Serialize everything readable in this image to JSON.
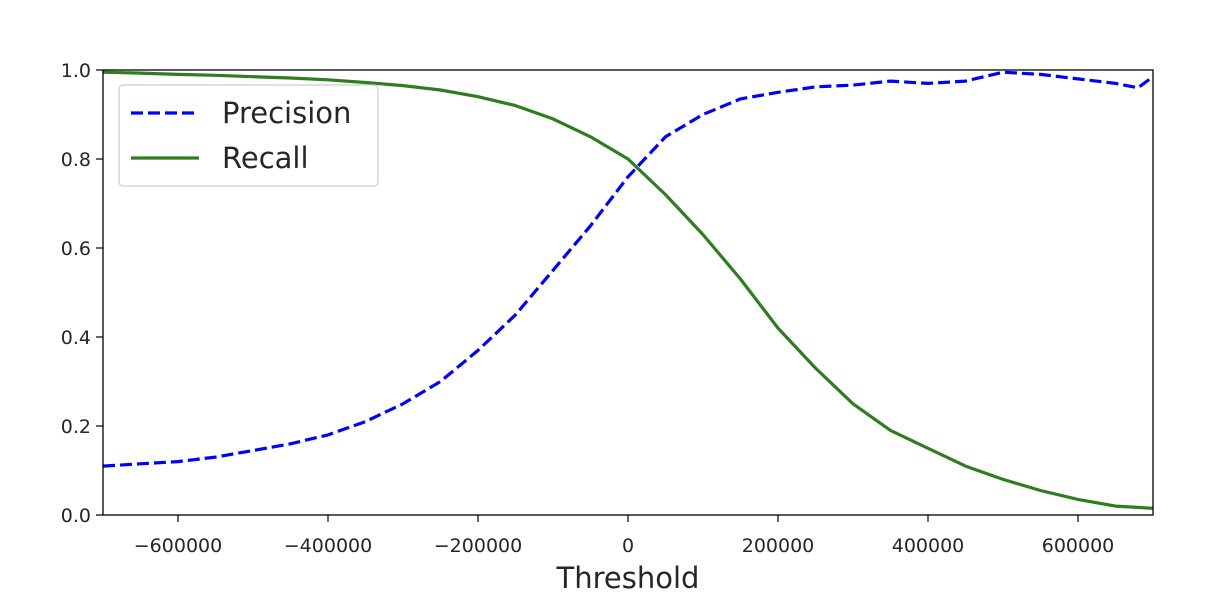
{
  "chart_data": {
    "type": "line",
    "title": "",
    "xlabel": "Threshold",
    "ylabel": "",
    "xlim": [
      -700000,
      700000
    ],
    "ylim": [
      0.0,
      1.0
    ],
    "xticks": [
      -600000,
      -400000,
      -200000,
      0,
      200000,
      400000,
      600000
    ],
    "xtick_labels": [
      "−600000",
      "−400000",
      "−200000",
      "0",
      "200000",
      "400000",
      "600000"
    ],
    "yticks": [
      0.0,
      0.2,
      0.4,
      0.6,
      0.8,
      1.0
    ],
    "ytick_labels": [
      "0.0",
      "0.2",
      "0.4",
      "0.6",
      "0.8",
      "1.0"
    ],
    "grid": false,
    "legend_position": "upper-left",
    "series": [
      {
        "name": "Precision",
        "color": "#0000ff",
        "style": "dashed",
        "x": [
          -700000,
          -650000,
          -600000,
          -550000,
          -500000,
          -450000,
          -400000,
          -350000,
          -300000,
          -250000,
          -200000,
          -150000,
          -100000,
          -50000,
          0,
          50000,
          100000,
          150000,
          200000,
          250000,
          300000,
          350000,
          400000,
          450000,
          500000,
          550000,
          600000,
          650000,
          680000,
          700000
        ],
        "y": [
          0.11,
          0.115,
          0.12,
          0.13,
          0.145,
          0.16,
          0.18,
          0.21,
          0.25,
          0.3,
          0.37,
          0.45,
          0.55,
          0.65,
          0.76,
          0.85,
          0.9,
          0.935,
          0.95,
          0.962,
          0.966,
          0.975,
          0.97,
          0.975,
          0.995,
          0.99,
          0.98,
          0.97,
          0.96,
          0.985
        ]
      },
      {
        "name": "Recall",
        "color": "#2e7d1e",
        "style": "solid",
        "x": [
          -700000,
          -650000,
          -600000,
          -550000,
          -500000,
          -450000,
          -400000,
          -350000,
          -300000,
          -250000,
          -200000,
          -150000,
          -100000,
          -50000,
          0,
          50000,
          100000,
          150000,
          200000,
          250000,
          300000,
          350000,
          400000,
          450000,
          500000,
          550000,
          600000,
          650000,
          700000
        ],
        "y": [
          0.995,
          0.993,
          0.99,
          0.988,
          0.985,
          0.982,
          0.978,
          0.972,
          0.965,
          0.955,
          0.94,
          0.92,
          0.89,
          0.85,
          0.8,
          0.72,
          0.63,
          0.53,
          0.42,
          0.33,
          0.25,
          0.19,
          0.15,
          0.11,
          0.08,
          0.055,
          0.035,
          0.02,
          0.015
        ]
      }
    ]
  }
}
